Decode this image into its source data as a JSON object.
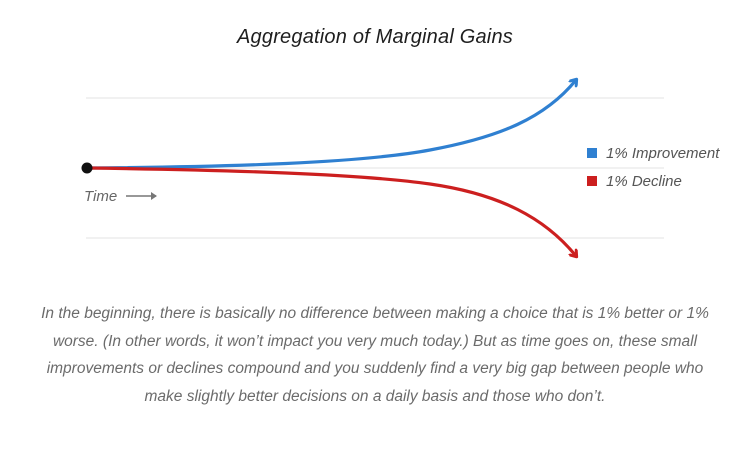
{
  "chart_data": {
    "type": "line",
    "title": "Aggregation of Marginal Gains",
    "xlabel": "Time",
    "ylabel": "",
    "grid": true,
    "legend_position": "right",
    "series": [
      {
        "name": "1% Improvement",
        "color": "#2f80d1",
        "trend": "exponential-growth"
      },
      {
        "name": "1% Decline",
        "color": "#cc1f1f",
        "trend": "exponential-decline"
      }
    ]
  },
  "caption": "In the beginning, there is basically no difference between making a choice that is 1% better or 1% worse. (In other words, it won’t impact you very much today.) But as time goes on, these small improvements or declines compound and you suddenly find a very big gap between people who make slightly better decisions on a daily basis and those who don’t."
}
